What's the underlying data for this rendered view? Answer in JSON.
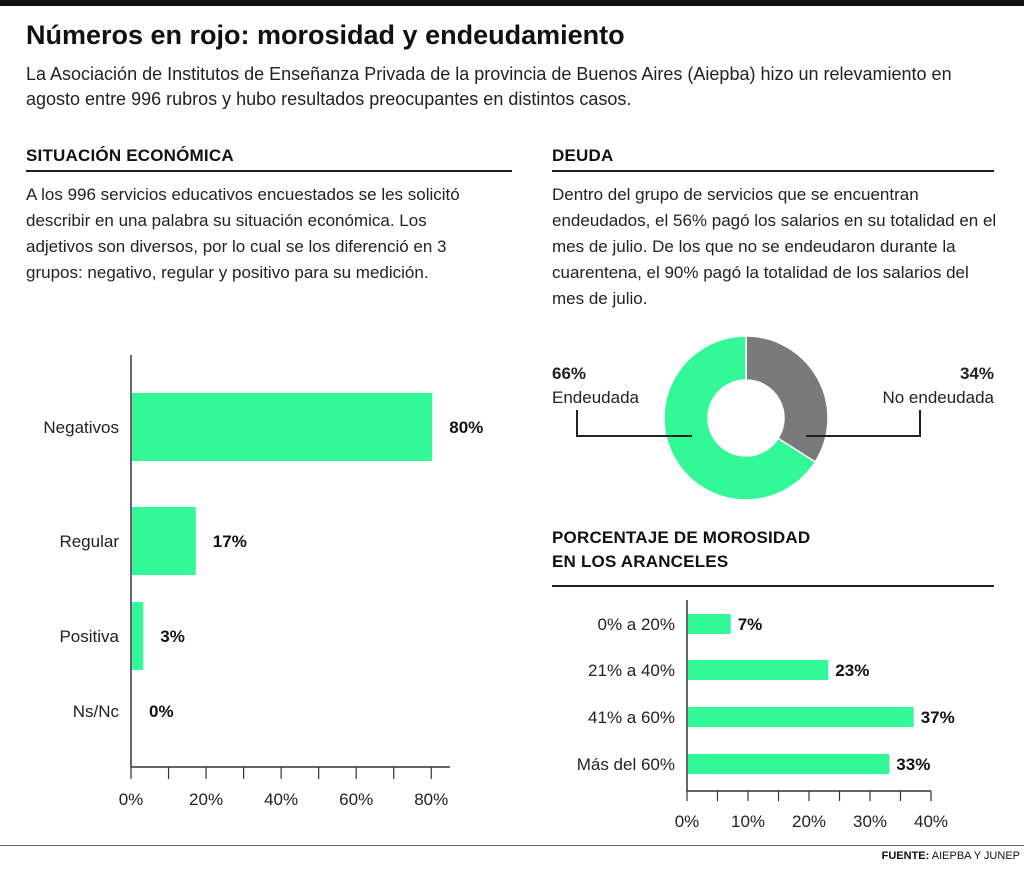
{
  "header": {
    "title": "Números en rojo: morosidad y endeudamiento",
    "subtitle": "La Asociación de Institutos de Enseñanza Privada de la provincia de Buenos Aires (Aiepba) hizo un relevamiento en agosto entre 996 rubros y hubo resultados preocupantes en distintos casos."
  },
  "situacion": {
    "heading": "SITUACIÓN ECONÓMICA",
    "text": "A los 996 servicios educativos encuestados se les solicitó describir en una palabra su situación económica. Los adjetivos son diversos, por lo cual se los diferenció en 3 grupos: negativo, regular y positivo para su medición."
  },
  "deuda": {
    "heading": "DEUDA",
    "text": "Dentro del grupo de servicios que se encuentran endeudados, el 56% pagó los salarios en su totalidad en el mes de julio. De los que no se endeudaron durante la cuarentena, el 90% pagó la totalidad de los salarios del mes de julio."
  },
  "morosidad": {
    "heading_line1": "PORCENTAJE DE MOROSIDAD",
    "heading_line2": "EN LOS ARANCELES"
  },
  "colors": {
    "green": "#33f898",
    "gray": "#7a7a7a",
    "axis": "#333333"
  },
  "chart_data": [
    {
      "type": "bar",
      "orientation": "horizontal",
      "categories": [
        "Negativos",
        "Regular",
        "Positiva",
        "Ns/Nc"
      ],
      "values": [
        80,
        17,
        3,
        0
      ],
      "value_labels": [
        "80%",
        "17%",
        "3%",
        "0%"
      ],
      "xlim": [
        0,
        85
      ],
      "xticks": [
        0,
        20,
        40,
        60,
        80
      ],
      "xtick_labels": [
        "0%",
        "20%",
        "40%",
        "60%",
        "80%"
      ]
    },
    {
      "type": "pie",
      "style": "donut",
      "slices": [
        {
          "label": "No endeudada",
          "value": 34,
          "value_label": "34%"
        },
        {
          "label": "Endeudada",
          "value": 66,
          "value_label": "66%"
        }
      ]
    },
    {
      "type": "bar",
      "orientation": "horizontal",
      "categories": [
        "0% a 20%",
        "21% a 40%",
        "41% a 60%",
        "Más del 60%"
      ],
      "values": [
        7,
        23,
        37,
        33
      ],
      "value_labels": [
        "7%",
        "23%",
        "37%",
        "33%"
      ],
      "xlim": [
        0,
        40
      ],
      "xticks": [
        0,
        10,
        20,
        30,
        40
      ],
      "xtick_labels": [
        "0%",
        "10%",
        "20%",
        "30%",
        "40%"
      ]
    }
  ],
  "source": {
    "label": "FUENTE:",
    "text": "AIEPBA Y JUNEP"
  }
}
